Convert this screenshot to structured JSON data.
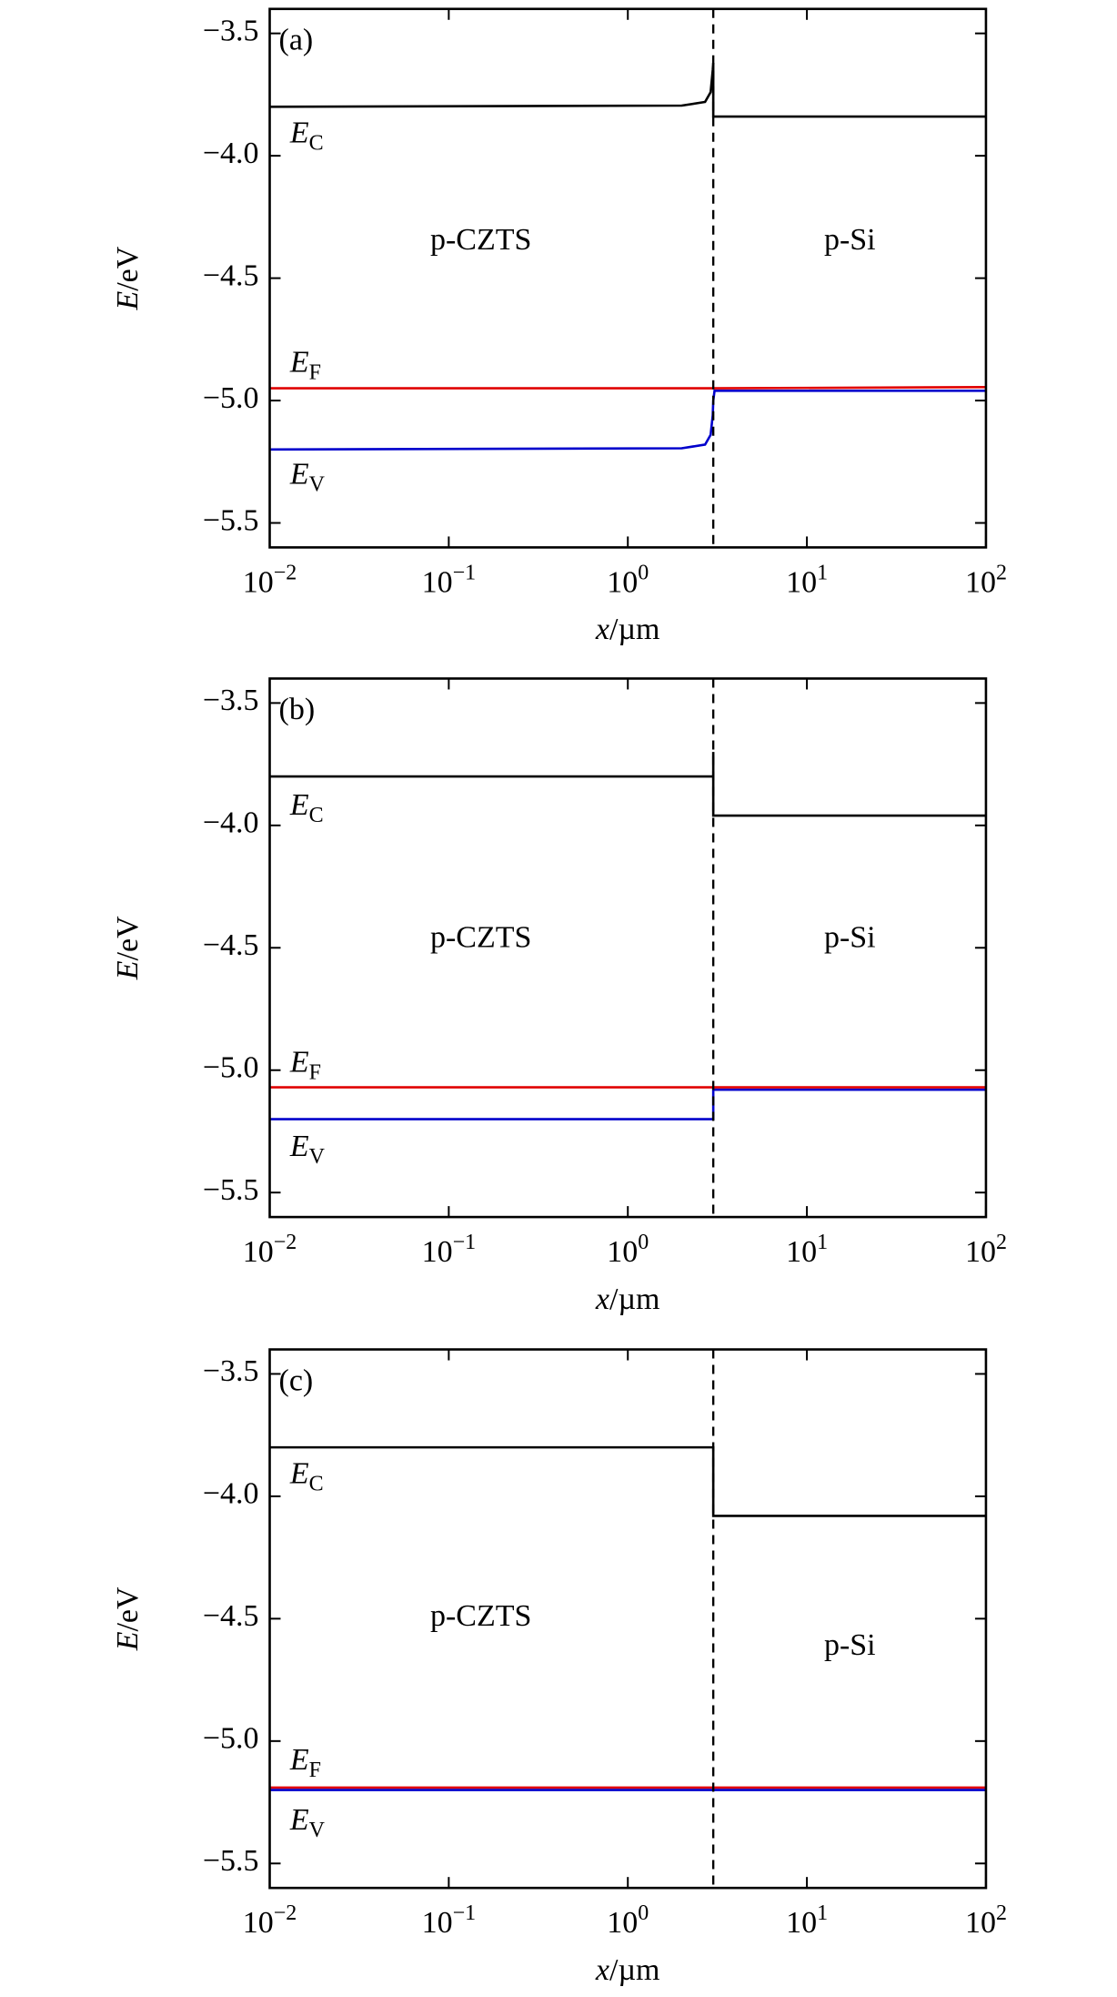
{
  "chart_data": [
    {
      "type": "line",
      "panel_label": "(a)",
      "region_labels": [
        "p-CZTS",
        "p-Si"
      ],
      "xlabel": "x/µm",
      "ylabel": "E/eV",
      "xscale": "log",
      "xlim": [
        0.01,
        100
      ],
      "ylim": [
        -5.6,
        -3.4
      ],
      "interface_x": 3,
      "xticks": [
        {
          "value": 0.01,
          "label": "10−2"
        },
        {
          "value": 0.1,
          "label": "10−1"
        },
        {
          "value": 1,
          "label": "100"
        },
        {
          "value": 10,
          "label": "101"
        },
        {
          "value": 100,
          "label": "102"
        }
      ],
      "yticks": [
        {
          "value": -3.5,
          "label": "−3.5"
        },
        {
          "value": -4.0,
          "label": "−4.0"
        },
        {
          "value": -4.5,
          "label": "−4.5"
        },
        {
          "value": -5.0,
          "label": "−5.0"
        },
        {
          "value": -5.5,
          "label": "−5.5"
        }
      ],
      "series": [
        {
          "label": {
            "text": "E",
            "subscript": "C"
          },
          "color": "#000000",
          "x": [
            0.01,
            2.0,
            2.7,
            2.9,
            2.98,
            3,
            3,
            100
          ],
          "values": [
            -3.8,
            -3.795,
            -3.78,
            -3.74,
            -3.65,
            -3.62,
            -3.84,
            -3.84
          ]
        },
        {
          "label": {
            "text": "E",
            "subscript": "F"
          },
          "color": "#e00000",
          "x": [
            0.01,
            3,
            100
          ],
          "values": [
            -4.95,
            -4.95,
            -4.945
          ]
        },
        {
          "label": {
            "text": "E",
            "subscript": "V"
          },
          "color": "#0000cc",
          "x": [
            0.01,
            2.0,
            2.7,
            2.9,
            2.98,
            3,
            3.05,
            100
          ],
          "values": [
            -5.2,
            -5.195,
            -5.18,
            -5.14,
            -5.06,
            -5.0,
            -4.96,
            -4.96
          ]
        }
      ]
    },
    {
      "type": "line",
      "panel_label": "(b)",
      "region_labels": [
        "p-CZTS",
        "p-Si"
      ],
      "xlabel": "x/µm",
      "ylabel": "E/eV",
      "xscale": "log",
      "xlim": [
        0.01,
        100
      ],
      "ylim": [
        -5.6,
        -3.4
      ],
      "interface_x": 3,
      "xticks": [
        {
          "value": 0.01,
          "label": "10−2"
        },
        {
          "value": 0.1,
          "label": "10−1"
        },
        {
          "value": 1,
          "label": "100"
        },
        {
          "value": 10,
          "label": "101"
        },
        {
          "value": 100,
          "label": "102"
        }
      ],
      "yticks": [
        {
          "value": -3.5,
          "label": "−3.5"
        },
        {
          "value": -4.0,
          "label": "−4.0"
        },
        {
          "value": -4.5,
          "label": "−4.5"
        },
        {
          "value": -5.0,
          "label": "−5.0"
        },
        {
          "value": -5.5,
          "label": "−5.5"
        }
      ],
      "series": [
        {
          "label": {
            "text": "E",
            "subscript": "C"
          },
          "color": "#000000",
          "x": [
            0.01,
            3,
            3,
            3,
            100
          ],
          "values": [
            -3.8,
            -3.8,
            -3.7,
            -3.96,
            -3.96
          ]
        },
        {
          "label": {
            "text": "E",
            "subscript": "F"
          },
          "color": "#e00000",
          "x": [
            0.01,
            100
          ],
          "values": [
            -5.07,
            -5.07
          ]
        },
        {
          "label": {
            "text": "E",
            "subscript": "V"
          },
          "color": "#0000cc",
          "x": [
            0.01,
            3,
            3,
            100
          ],
          "values": [
            -5.2,
            -5.2,
            -5.08,
            -5.08
          ]
        }
      ]
    },
    {
      "type": "line",
      "panel_label": "(c)",
      "region_labels": [
        "p-CZTS",
        "p-Si"
      ],
      "xlabel": "x/µm",
      "ylabel": "E/eV",
      "xscale": "log",
      "xlim": [
        0.01,
        100
      ],
      "ylim": [
        -5.6,
        -3.4
      ],
      "interface_x": 3,
      "xticks": [
        {
          "value": 0.01,
          "label": "10−2"
        },
        {
          "value": 0.1,
          "label": "10−1"
        },
        {
          "value": 1,
          "label": "100"
        },
        {
          "value": 10,
          "label": "101"
        },
        {
          "value": 100,
          "label": "102"
        }
      ],
      "yticks": [
        {
          "value": -3.5,
          "label": "−3.5"
        },
        {
          "value": -4.0,
          "label": "−4.0"
        },
        {
          "value": -4.5,
          "label": "−4.5"
        },
        {
          "value": -5.0,
          "label": "−5.0"
        },
        {
          "value": -5.5,
          "label": "−5.5"
        }
      ],
      "series": [
        {
          "label": {
            "text": "E",
            "subscript": "C"
          },
          "color": "#000000",
          "x": [
            0.01,
            3,
            3,
            100
          ],
          "values": [
            -3.8,
            -3.8,
            -4.08,
            -4.08
          ]
        },
        {
          "label": {
            "text": "E",
            "subscript": "F"
          },
          "color": "#e00000",
          "x": [
            0.01,
            100
          ],
          "values": [
            -5.19,
            -5.19
          ]
        },
        {
          "label": {
            "text": "E",
            "subscript": "V"
          },
          "color": "#0000cc",
          "x": [
            0.01,
            100
          ],
          "values": [
            -5.2,
            -5.2
          ]
        }
      ]
    }
  ]
}
